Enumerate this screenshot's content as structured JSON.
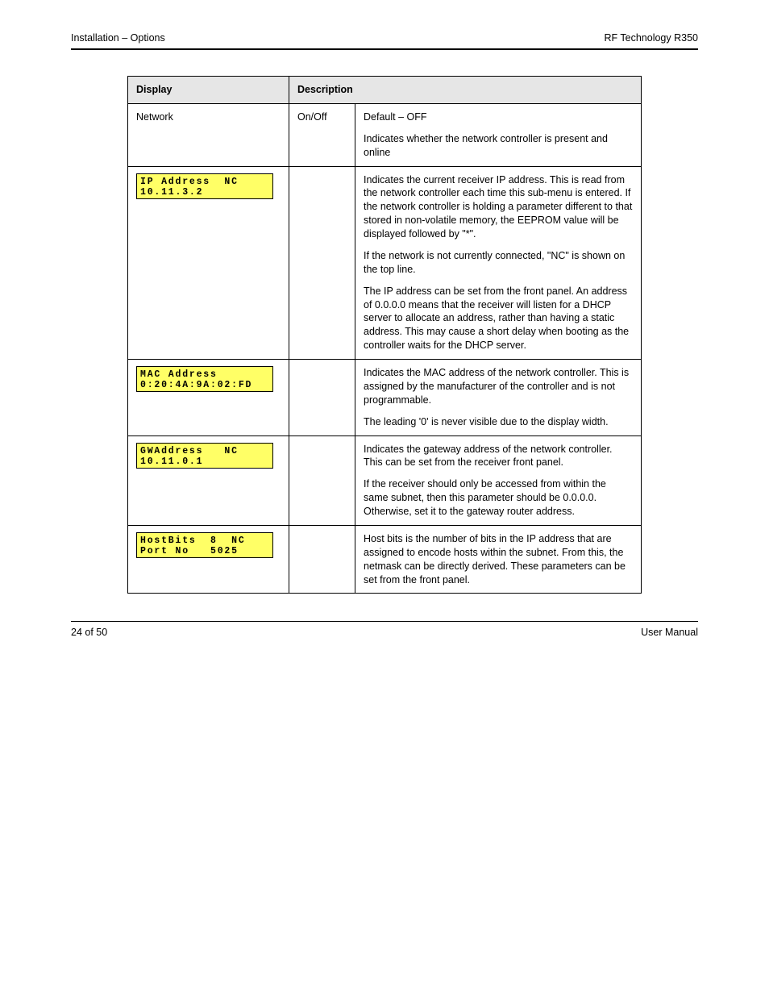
{
  "header": {
    "left": "Installation – Options",
    "right": "RF Technology R350"
  },
  "table": {
    "head": {
      "display": "Display",
      "description": "Description"
    },
    "rows": [
      {
        "display_label": "Network",
        "setting": "On/Off",
        "desc_paras": [
          "Default – OFF",
          "Indicates whether the network controller is present and online"
        ]
      },
      {
        "lcd_lines": [
          "IP Address  NC",
          "10.11.3.2"
        ],
        "setting": "",
        "desc_paras": [
          "Indicates the current receiver IP address. This is read from the network controller each time this sub-menu is entered. If the network controller is holding a parameter different to that stored in non-volatile memory, the EEPROM value will be displayed followed by \"*\".",
          "If the network is not currently connected, \"NC\" is shown on the top line.",
          "The IP address can be set from the front panel. An address of 0.0.0.0 means that the receiver will listen for a DHCP server to allocate an address, rather than having a static address. This may cause a short delay when booting as the controller waits for the DHCP server."
        ]
      },
      {
        "lcd_lines": [
          "MAC Address",
          "0:20:4A:9A:02:FD"
        ],
        "setting": "",
        "desc_paras": [
          "Indicates the MAC address of the network controller. This is assigned by the manufacturer of the controller and is not programmable.",
          "The leading '0' is never visible due to the display width."
        ]
      },
      {
        "lcd_lines": [
          "GWAddress   NC",
          "10.11.0.1"
        ],
        "setting": "",
        "desc_paras": [
          "Indicates the gateway address of the network controller. This can be set from the receiver front panel.",
          "If the receiver should only be accessed from within the same subnet, then this parameter should be 0.0.0.0. Otherwise, set it to the gateway router address."
        ]
      },
      {
        "lcd_lines": [
          "HostBits  8  NC",
          "Port No   5025"
        ],
        "setting": "",
        "desc_paras": [
          "Host bits is the number of bits in the IP address that are assigned to encode hosts within the subnet. From this, the netmask can be directly derived. These parameters can be set from the front panel."
        ]
      }
    ]
  },
  "footer": {
    "left": "24 of 50",
    "right": "User Manual"
  }
}
